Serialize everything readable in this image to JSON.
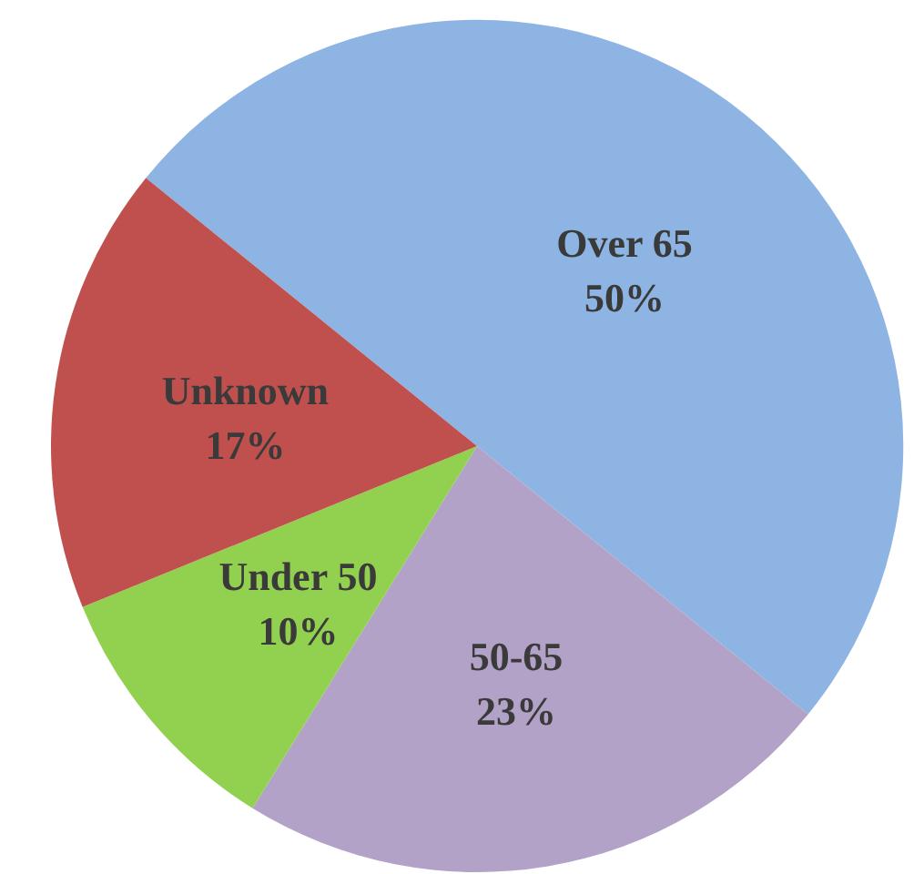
{
  "chart_data": {
    "type": "pie",
    "categories": [
      "Over 65",
      "50-65",
      "Under 50",
      "Unknown"
    ],
    "values": [
      50,
      23,
      10,
      17
    ],
    "colors": [
      "#8eb4e3",
      "#b3a2c7",
      "#92d050",
      "#c0504d"
    ],
    "value_labels": [
      "50%",
      "23%",
      "10%",
      "17%"
    ],
    "legend": false
  }
}
